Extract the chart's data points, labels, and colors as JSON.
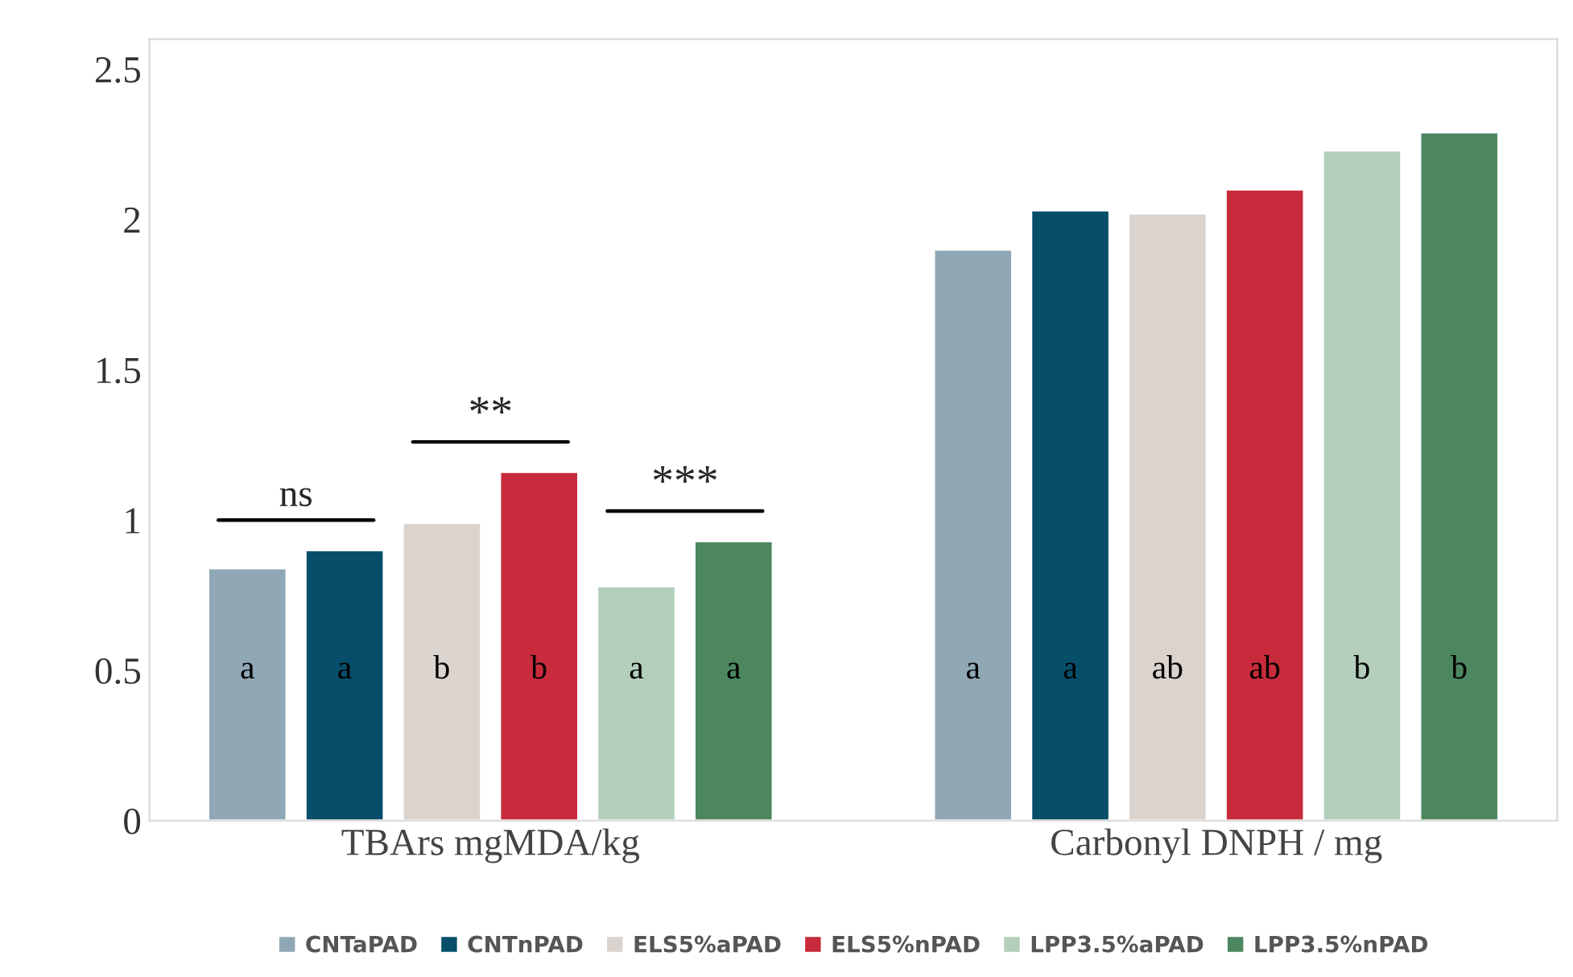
{
  "chart_data": {
    "type": "bar",
    "categories": [
      "TBArs mgMDA/kg",
      "Carbonyl DNPH / mg"
    ],
    "series": [
      {
        "name": "CNTaPAD",
        "color": "#90a8b6",
        "values": [
          0.84,
          1.9
        ],
        "value_labels": [
          "a",
          "a"
        ]
      },
      {
        "name": "CNTnPAD",
        "color": "#064e6a",
        "values": [
          0.9,
          2.03
        ],
        "value_labels": [
          "a",
          "a"
        ]
      },
      {
        "name": "ELS5%aPAD",
        "color": "#dbd3cd",
        "values": [
          0.99,
          2.02
        ],
        "value_labels": [
          "b",
          "ab"
        ]
      },
      {
        "name": "ELS5%nPAD",
        "color": "#c82b3b",
        "values": [
          1.16,
          2.1
        ],
        "value_labels": [
          "b",
          "ab"
        ]
      },
      {
        "name": "LPP3.5%aPAD",
        "color": "#b3cfbb",
        "values": [
          0.78,
          2.23
        ],
        "value_labels": [
          "a",
          "b"
        ]
      },
      {
        "name": "LPP3.5%nPAD",
        "color": "#4c8760",
        "values": [
          0.93,
          2.29
        ],
        "value_labels": [
          "a",
          "b"
        ]
      }
    ],
    "annotations": [
      "ns",
      "**",
      "***"
    ],
    "ylim": [
      0,
      2.6
    ],
    "yticks": [
      0,
      0.5,
      1,
      1.5,
      2,
      2.5
    ],
    "grid": false,
    "legend": "bottom"
  }
}
